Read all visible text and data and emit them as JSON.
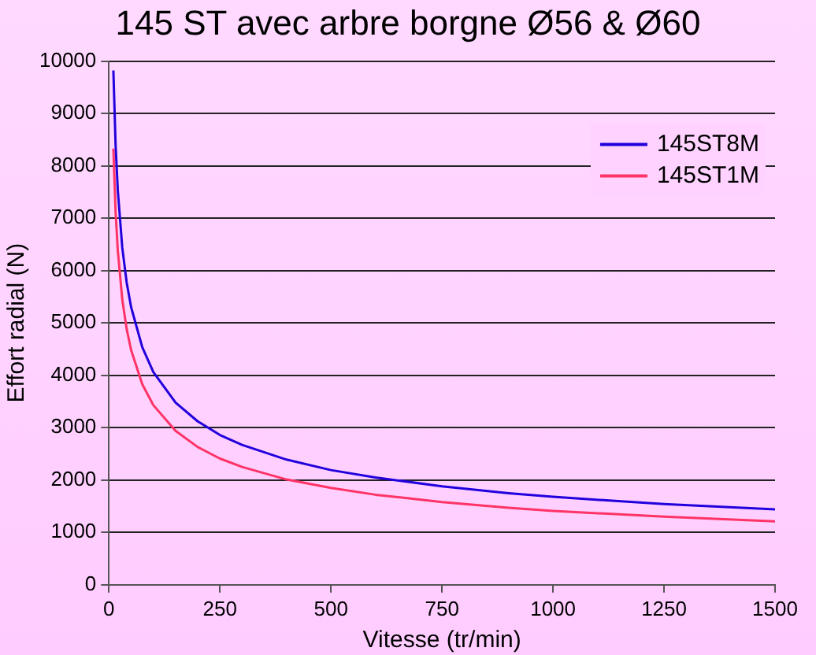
{
  "chart_data": {
    "type": "line",
    "title": "145 ST avec arbre borgne Ø56 & Ø60",
    "xlabel": "Vitesse (tr/min)",
    "ylabel": "Effort radial (N)",
    "x": [
      10,
      15,
      20,
      30,
      40,
      50,
      75,
      100,
      150,
      200,
      250,
      300,
      400,
      500,
      600,
      750,
      900,
      1000,
      1250,
      1500
    ],
    "series": [
      {
        "name": "145ST8M",
        "color": "#2200dd",
        "values": [
          9820,
          8400,
          7530,
          6440,
          5770,
          5300,
          4540,
          4060,
          3480,
          3120,
          2860,
          2670,
          2390,
          2190,
          2050,
          1880,
          1750,
          1680,
          1540,
          1440
        ]
      },
      {
        "name": "145ST1M",
        "color": "#ff3366",
        "values": [
          8330,
          7120,
          6380,
          5450,
          4880,
          4480,
          3830,
          3430,
          2940,
          2630,
          2410,
          2250,
          2010,
          1850,
          1720,
          1580,
          1470,
          1410,
          1300,
          1210
        ]
      }
    ],
    "xlim": [
      0,
      1500
    ],
    "xticks": [
      0,
      250,
      500,
      750,
      1000,
      1250,
      1500
    ],
    "ylim": [
      0,
      10000
    ],
    "yticks": [
      0,
      1000,
      2000,
      3000,
      4000,
      5000,
      6000,
      7000,
      8000,
      9000,
      10000
    ],
    "grid": "y",
    "legend": "top right",
    "marker": "none",
    "line_style": "solid"
  }
}
